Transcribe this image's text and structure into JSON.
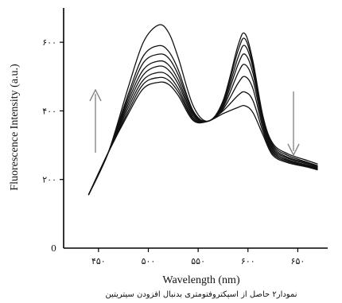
{
  "chart_data": {
    "type": "line",
    "title": "",
    "xlabel": "Wavelength (nm)",
    "ylabel": "Fluorescence Intensity (a.u.)",
    "xlim": [
      415,
      680
    ],
    "ylim": [
      0,
      700
    ],
    "xticks": [
      450,
      500,
      550,
      600,
      650
    ],
    "xtick_labels": [
      "۴۵۰",
      "۵۰۰",
      "۵۵۰",
      "۶۰۰",
      "۶۵۰"
    ],
    "yticks": [
      0,
      200,
      400,
      600
    ],
    "ytick_labels": [
      "0",
      "۲۰۰",
      "۴۰۰",
      "۶۰۰"
    ],
    "caption": "نمودار۲ حاصل از اسپکتروفتومتری بدنبال افزودن سیتریتین",
    "annotations": [
      {
        "type": "arrow",
        "direction": "up",
        "meaning": "first peak increases"
      },
      {
        "type": "arrow",
        "direction": "down",
        "meaning": "second peak decreases"
      }
    ],
    "series": [
      {
        "x": [
          440,
          460,
          480,
          495,
          510,
          520,
          530,
          545,
          560,
          575,
          590,
          597,
          605,
          615,
          625,
          640,
          660,
          670
        ],
        "y": [
          155,
          280,
          470,
          600,
          650,
          630,
          555,
          415,
          370,
          430,
          590,
          625,
          545,
          385,
          305,
          275,
          255,
          245
        ]
      },
      {
        "x": [
          440,
          460,
          480,
          495,
          510,
          520,
          530,
          545,
          560,
          575,
          590,
          597,
          605,
          615,
          625,
          640,
          660,
          670
        ],
        "y": [
          155,
          280,
          450,
          560,
          590,
          575,
          520,
          400,
          370,
          425,
          575,
          610,
          535,
          380,
          300,
          270,
          250,
          240
        ]
      },
      {
        "x": [
          440,
          460,
          480,
          495,
          510,
          520,
          530,
          545,
          560,
          575,
          590,
          597,
          605,
          615,
          625,
          640,
          660,
          670
        ],
        "y": [
          155,
          280,
          440,
          540,
          565,
          555,
          505,
          395,
          370,
          420,
          555,
          590,
          525,
          375,
          295,
          265,
          248,
          238
        ]
      },
      {
        "x": [
          440,
          460,
          480,
          495,
          510,
          520,
          530,
          545,
          560,
          575,
          590,
          597,
          605,
          615,
          625,
          640,
          660,
          670
        ],
        "y": [
          155,
          280,
          430,
          520,
          545,
          535,
          490,
          390,
          370,
          415,
          535,
          565,
          510,
          370,
          290,
          262,
          245,
          236
        ]
      },
      {
        "x": [
          440,
          460,
          480,
          495,
          510,
          520,
          530,
          545,
          560,
          575,
          590,
          597,
          605,
          615,
          625,
          640,
          660,
          670
        ],
        "y": [
          155,
          280,
          420,
          505,
          530,
          520,
          478,
          385,
          370,
          410,
          510,
          535,
          490,
          360,
          285,
          258,
          242,
          234
        ]
      },
      {
        "x": [
          440,
          460,
          480,
          495,
          510,
          520,
          530,
          545,
          560,
          575,
          590,
          597,
          605,
          615,
          625,
          640,
          660,
          670
        ],
        "y": [
          155,
          280,
          410,
          490,
          512,
          503,
          465,
          380,
          370,
          405,
          480,
          500,
          465,
          350,
          280,
          255,
          240,
          232
        ]
      },
      {
        "x": [
          440,
          460,
          480,
          495,
          510,
          520,
          530,
          545,
          560,
          575,
          590,
          597,
          605,
          615,
          625,
          640,
          660,
          670
        ],
        "y": [
          155,
          280,
          400,
          478,
          497,
          490,
          455,
          376,
          370,
          400,
          445,
          455,
          430,
          340,
          275,
          252,
          238,
          230
        ]
      },
      {
        "x": [
          440,
          460,
          480,
          495,
          510,
          520,
          530,
          545,
          560,
          575,
          590,
          597,
          605,
          615,
          625,
          640,
          660,
          670
        ],
        "y": [
          155,
          280,
          392,
          465,
          483,
          478,
          445,
          372,
          370,
          392,
          410,
          415,
          395,
          330,
          270,
          249,
          236,
          228
        ]
      }
    ]
  }
}
